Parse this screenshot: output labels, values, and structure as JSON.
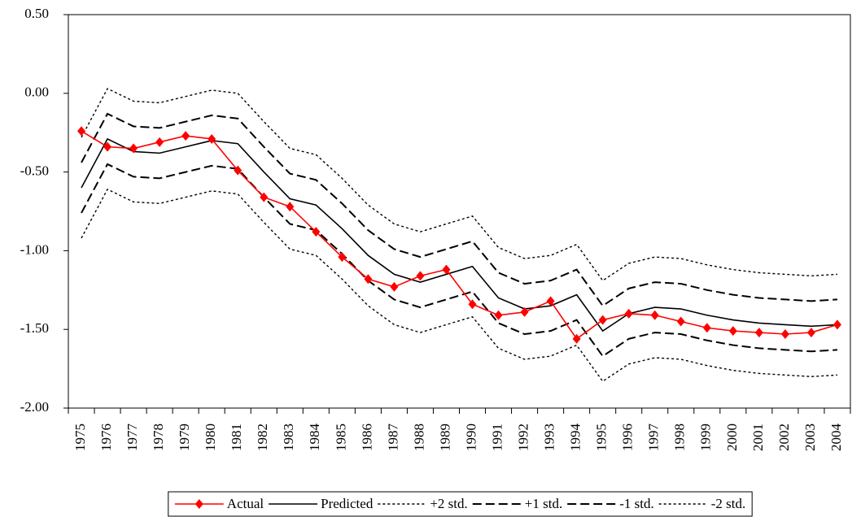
{
  "chart_data": {
    "type": "line",
    "categories": [
      "1975",
      "1976",
      "1977",
      "1978",
      "1979",
      "1980",
      "1981",
      "1982",
      "1983",
      "1984",
      "1985",
      "1986",
      "1987",
      "1988",
      "1989",
      "1990",
      "1991",
      "1992",
      "1993",
      "1994",
      "1995",
      "1996",
      "1997",
      "1998",
      "1999",
      "2000",
      "2001",
      "2002",
      "2003",
      "2004"
    ],
    "ylim": [
      -2,
      0.5
    ],
    "yticks": [
      {
        "value": 0.5,
        "label": "0.50"
      },
      {
        "value": 0,
        "label": "0.00"
      },
      {
        "value": -0.5,
        "label": "-0.50"
      },
      {
        "value": -1,
        "label": "-1.00"
      },
      {
        "value": -1.5,
        "label": "-1.50"
      },
      {
        "value": -2,
        "label": "-2.00"
      }
    ],
    "legend": "bottom",
    "series": [
      {
        "name": "Actual",
        "color": "#ff0000",
        "style": "solid",
        "marker": "diamond",
        "values": [
          -0.24,
          -0.34,
          -0.35,
          -0.31,
          -0.27,
          -0.29,
          -0.49,
          -0.66,
          -0.72,
          -0.88,
          -1.04,
          -1.18,
          -1.23,
          -1.16,
          -1.12,
          -1.34,
          -1.41,
          -1.39,
          -1.32,
          -1.56,
          -1.44,
          -1.4,
          -1.41,
          -1.45,
          -1.49,
          -1.51,
          -1.52,
          -1.53,
          -1.52,
          -1.47
        ]
      },
      {
        "name": "Predicted",
        "color": "#000000",
        "style": "solid",
        "values": [
          -0.6,
          -0.29,
          -0.37,
          -0.38,
          -0.34,
          -0.3,
          -0.32,
          -0.5,
          -0.67,
          -0.71,
          -0.86,
          -1.03,
          -1.15,
          -1.2,
          -1.15,
          -1.1,
          -1.3,
          -1.37,
          -1.35,
          -1.28,
          -1.51,
          -1.4,
          -1.36,
          -1.37,
          -1.41,
          -1.44,
          -1.46,
          -1.47,
          -1.48,
          -1.47
        ]
      },
      {
        "name": "+2 std.",
        "color": "#000000",
        "style": "dotted",
        "values": [
          -0.28,
          0.03,
          -0.05,
          -0.06,
          -0.02,
          0.02,
          0.0,
          -0.18,
          -0.35,
          -0.39,
          -0.54,
          -0.71,
          -0.83,
          -0.88,
          -0.83,
          -0.78,
          -0.98,
          -1.05,
          -1.03,
          -0.96,
          -1.19,
          -1.08,
          -1.04,
          -1.05,
          -1.09,
          -1.12,
          -1.14,
          -1.15,
          -1.16,
          -1.15
        ]
      },
      {
        "name": "+1 std.",
        "color": "#000000",
        "style": "dashed",
        "values": [
          -0.44,
          -0.13,
          -0.21,
          -0.22,
          -0.18,
          -0.14,
          -0.16,
          -0.34,
          -0.51,
          -0.55,
          -0.7,
          -0.87,
          -0.99,
          -1.04,
          -0.99,
          -0.94,
          -1.14,
          -1.21,
          -1.19,
          -1.12,
          -1.35,
          -1.24,
          -1.2,
          -1.21,
          -1.25,
          -1.28,
          -1.3,
          -1.31,
          -1.32,
          -1.31
        ]
      },
      {
        "name": "-1 std.",
        "color": "#000000",
        "style": "dashed",
        "values": [
          -0.76,
          -0.45,
          -0.53,
          -0.54,
          -0.5,
          -0.46,
          -0.48,
          -0.66,
          -0.83,
          -0.87,
          -1.02,
          -1.19,
          -1.31,
          -1.36,
          -1.31,
          -1.26,
          -1.46,
          -1.53,
          -1.51,
          -1.44,
          -1.67,
          -1.56,
          -1.52,
          -1.53,
          -1.57,
          -1.6,
          -1.62,
          -1.63,
          -1.64,
          -1.63
        ]
      },
      {
        "name": "-2 std.",
        "color": "#000000",
        "style": "dotted",
        "values": [
          -0.92,
          -0.61,
          -0.69,
          -0.7,
          -0.66,
          -0.62,
          -0.64,
          -0.82,
          -0.99,
          -1.03,
          -1.18,
          -1.35,
          -1.47,
          -1.52,
          -1.47,
          -1.42,
          -1.62,
          -1.69,
          -1.67,
          -1.6,
          -1.83,
          -1.72,
          -1.68,
          -1.69,
          -1.73,
          -1.76,
          -1.78,
          -1.79,
          -1.8,
          -1.79
        ]
      }
    ]
  }
}
